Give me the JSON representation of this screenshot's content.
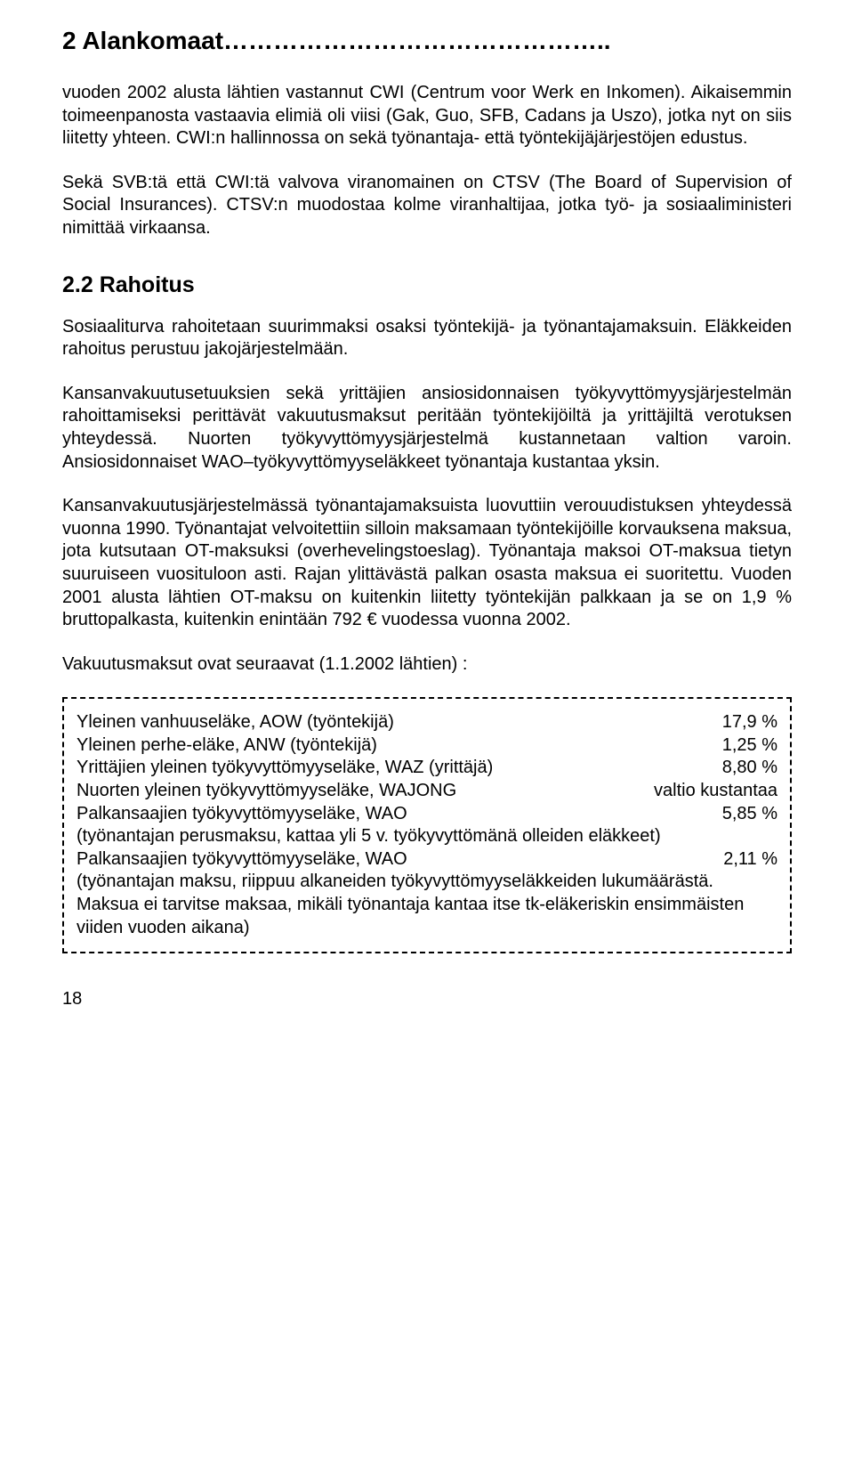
{
  "title": "2 Alankomaat………………………………………..",
  "paragraphs": {
    "p1": "vuoden 2002 alusta lähtien vastannut CWI (Centrum voor Werk en Inkomen). Aikaisemmin toimeenpanosta vastaavia elimiä oli viisi (Gak, Guo, SFB, Cadans ja Uszo), jotka nyt on siis liitetty yhteen. CWI:n hallinnossa on sekä työnantaja- että työntekijäjärjestöjen edustus.",
    "p2": "Sekä SVB:tä että CWI:tä valvova viranomainen on CTSV (The Board of Supervision of Social Insurances). CTSV:n muodostaa kolme viranhaltijaa, jotka työ- ja sosiaaliministeri nimittää virkaansa.",
    "p3": "Sosiaaliturva rahoitetaan suurimmaksi osaksi työntekijä- ja työnantajamaksuin. Eläkkeiden rahoitus perustuu jakojärjestelmään.",
    "p4": "Kansanvakuutusetuuksien sekä yrittäjien ansiosidonnaisen työkyvyttömyysjärjestelmän rahoittamiseksi perittävät vakuutusmaksut peritään työntekijöiltä ja yrittäjiltä verotuksen yhteydessä. Nuorten työkyvyttömyysjärjestelmä kustannetaan valtion varoin. Ansiosidonnaiset WAO–työkyvyttömyyseläkkeet työnantaja kustantaa yksin.",
    "p5": "Kansanvakuutusjärjestelmässä työnantajamaksuista luovuttiin verouudistuksen yhteydessä vuonna 1990. Työnantajat velvoitettiin silloin maksamaan työntekijöille korvauksena maksua, jota kutsutaan OT-maksuksi (overhevelingstoeslag). Työnantaja maksoi OT-maksua tietyn suuruiseen vuosituloon asti. Rajan ylittävästä palkan osasta maksua ei suoritettu. Vuoden 2001 alusta lähtien OT-maksu on kuitenkin liitetty työntekijän palkkaan ja se on 1,9 % bruttopalkasta, kuitenkin enintään 792 € vuodessa vuonna 2002.",
    "p6": "Vakuutusmaksut ovat seuraavat (1.1.2002 lähtien) :"
  },
  "subheading": "2.2 Rahoitus",
  "table": {
    "rows": [
      {
        "label": "Yleinen vanhuuseläke, AOW (työntekijä)",
        "value": "17,9 %"
      },
      {
        "label": "Yleinen perhe-eläke, ANW (työntekijä)",
        "value": "1,25 %"
      },
      {
        "label": "Yrittäjien yleinen työkyvyttömyyseläke, WAZ (yrittäjä)",
        "value": "8,80 %"
      },
      {
        "label": "Nuorten yleinen työkyvyttömyyseläke, WAJONG",
        "value": "valtio kustantaa"
      },
      {
        "label": "Palkansaajien työkyvyttömyyseläke, WAO",
        "value": "5,85 %"
      }
    ],
    "note1": "(työnantajan perusmaksu, kattaa yli 5 v. työkyvyttömänä olleiden eläkkeet)",
    "row6": {
      "label": "Palkansaajien työkyvyttömyyseläke, WAO",
      "value": "2,11 %"
    },
    "note2": "(työnantajan maksu, riippuu alkaneiden työkyvyttömyyseläkkeiden lukumäärästä. Maksua ei tarvitse maksaa, mikäli työnantaja kantaa itse tk-eläkeriskin ensimmäisten viiden vuoden aikana)"
  },
  "pageNumber": "18"
}
